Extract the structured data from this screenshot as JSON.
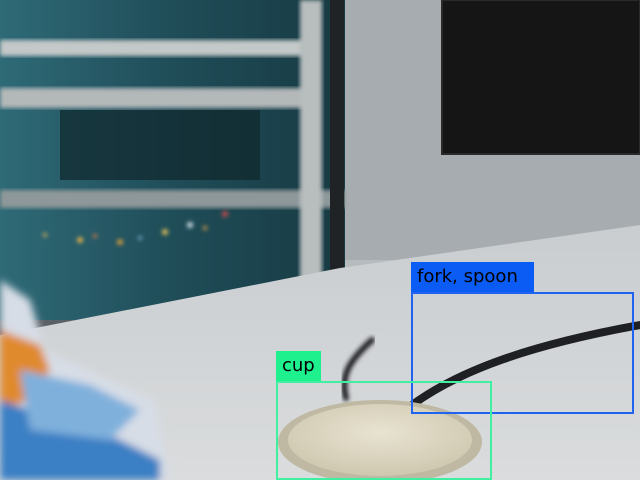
{
  "detections": [
    {
      "label": "fork, spoon",
      "color": "#1f63f0",
      "label_color": "#0a5cf5"
    },
    {
      "label": "cup",
      "color": "#3ff0a0",
      "label_color": "#1ef08e"
    }
  ]
}
